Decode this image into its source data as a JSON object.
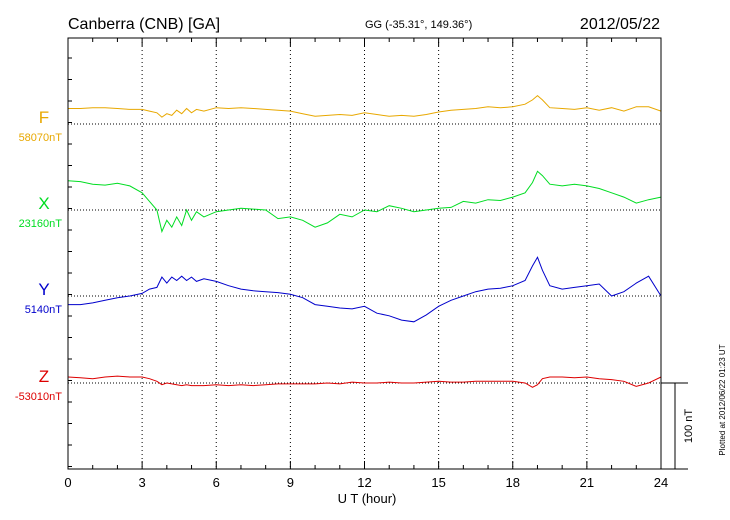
{
  "header": {
    "station": "Canberra (CNB)  [GA]",
    "coords": "GG (-35.31°, 149.36°)",
    "date": "2012/05/22"
  },
  "plotted_note": "Plotted at 2012/06/22 01:23 UT",
  "colors": {
    "F": "#e8a800",
    "X": "#00dd22",
    "Y": "#0000cc",
    "Z": "#dd0000",
    "axis": "#000000"
  },
  "chart_data": {
    "type": "line",
    "title": "",
    "xlabel": "U T (hour)",
    "xlim": [
      0,
      24
    ],
    "xticks": [
      0,
      3,
      6,
      9,
      12,
      15,
      18,
      21,
      24
    ],
    "grid": true,
    "scale_bar": {
      "label": "100 nT",
      "value_nT": 100
    },
    "series": [
      {
        "name": "F",
        "baseline_label": "58070nT",
        "baseline_nT": 58070,
        "x": [
          0,
          0.5,
          1,
          1.5,
          2,
          2.5,
          3,
          3.3,
          3.6,
          3.8,
          4,
          4.2,
          4.4,
          4.6,
          4.8,
          5,
          5.2,
          5.5,
          6,
          6.5,
          7,
          7.5,
          8,
          8.5,
          9,
          9.5,
          10,
          10.5,
          11,
          11.5,
          12,
          12.5,
          13,
          13.5,
          14,
          14.5,
          15,
          15.5,
          16,
          16.5,
          17,
          17.5,
          18,
          18.5,
          18.8,
          19,
          19.2,
          19.5,
          20,
          20.5,
          21,
          21.5,
          22,
          22.5,
          23,
          23.5,
          24
        ],
        "y": [
          58088,
          58088,
          58089,
          58089,
          58088,
          58087,
          58087,
          58085,
          58083,
          58078,
          58082,
          58080,
          58086,
          58082,
          58088,
          58083,
          58087,
          58085,
          58089,
          58088,
          58089,
          58088,
          58087,
          58086,
          58085,
          58082,
          58079,
          58080,
          58081,
          58080,
          58083,
          58081,
          58079,
          58080,
          58079,
          58081,
          58084,
          58086,
          58087,
          58088,
          58090,
          58089,
          58090,
          58093,
          58098,
          58103,
          58098,
          58089,
          58088,
          58087,
          58089,
          58086,
          58089,
          58085,
          58090,
          58090,
          58085
        ]
      },
      {
        "name": "X",
        "baseline_label": "23160nT",
        "baseline_nT": 23160,
        "x": [
          0,
          0.5,
          1,
          1.5,
          2,
          2.5,
          3,
          3.3,
          3.6,
          3.8,
          4,
          4.2,
          4.4,
          4.6,
          4.8,
          5,
          5.2,
          5.5,
          6,
          6.5,
          7,
          7.5,
          8,
          8.5,
          9,
          9.5,
          10,
          10.5,
          11,
          11.5,
          12,
          12.5,
          13,
          13.5,
          14,
          14.5,
          15,
          15.5,
          16,
          16.5,
          17,
          17.5,
          18,
          18.5,
          18.8,
          19,
          19.2,
          19.5,
          20,
          20.5,
          21,
          21.5,
          22,
          22.5,
          23,
          23.5,
          24
        ],
        "y": [
          23194,
          23193,
          23190,
          23189,
          23191,
          23188,
          23180,
          23170,
          23160,
          23135,
          23148,
          23140,
          23152,
          23142,
          23160,
          23148,
          23158,
          23152,
          23158,
          23160,
          23162,
          23161,
          23160,
          23150,
          23152,
          23148,
          23140,
          23145,
          23155,
          23152,
          23160,
          23158,
          23165,
          23162,
          23158,
          23160,
          23162,
          23163,
          23170,
          23168,
          23172,
          23171,
          23175,
          23180,
          23192,
          23205,
          23200,
          23190,
          23188,
          23190,
          23188,
          23185,
          23180,
          23175,
          23168,
          23172,
          23175
        ]
      },
      {
        "name": "Y",
        "baseline_label": "5140nT",
        "baseline_nT": 5140,
        "x": [
          0,
          0.5,
          1,
          1.5,
          2,
          2.5,
          3,
          3.3,
          3.6,
          3.8,
          4,
          4.2,
          4.4,
          4.6,
          4.8,
          5,
          5.2,
          5.5,
          6,
          6.5,
          7,
          7.5,
          8,
          8.5,
          9,
          9.5,
          10,
          10.5,
          11,
          11.5,
          12,
          12.5,
          13,
          13.5,
          14,
          14.5,
          15,
          15.5,
          16,
          16.5,
          17,
          17.5,
          18,
          18.5,
          18.8,
          19,
          19.2,
          19.5,
          20,
          20.5,
          21,
          21.5,
          22,
          22.5,
          23,
          23.5,
          24
        ],
        "y": [
          5130,
          5130,
          5132,
          5135,
          5138,
          5140,
          5143,
          5148,
          5150,
          5162,
          5155,
          5162,
          5158,
          5163,
          5158,
          5162,
          5157,
          5160,
          5157,
          5152,
          5148,
          5146,
          5145,
          5144,
          5142,
          5138,
          5130,
          5128,
          5126,
          5125,
          5128,
          5120,
          5117,
          5112,
          5110,
          5118,
          5128,
          5135,
          5140,
          5145,
          5148,
          5149,
          5152,
          5158,
          5175,
          5185,
          5170,
          5152,
          5148,
          5150,
          5152,
          5154,
          5140,
          5145,
          5155,
          5163,
          5140
        ]
      },
      {
        "name": "Z",
        "baseline_label": "-53010nT",
        "baseline_nT": -53010,
        "x": [
          0,
          0.5,
          1,
          1.5,
          2,
          2.5,
          3,
          3.3,
          3.6,
          3.8,
          4,
          4.2,
          4.4,
          4.6,
          4.8,
          5,
          5.2,
          5.5,
          6,
          6.5,
          7,
          7.5,
          8,
          8.5,
          9,
          9.5,
          10,
          10.5,
          11,
          11.5,
          12,
          12.5,
          13,
          13.5,
          14,
          14.5,
          15,
          15.5,
          16,
          16.5,
          17,
          17.5,
          18,
          18.5,
          18.8,
          19,
          19.2,
          19.5,
          20,
          20.5,
          21,
          21.5,
          22,
          22.5,
          23,
          23.5,
          24
        ],
        "y": [
          -53003,
          -53004,
          -53005,
          -53003,
          -53002,
          -53003,
          -53003,
          -53005,
          -53008,
          -53012,
          -53010,
          -53011,
          -53012,
          -53013,
          -53012,
          -53013,
          -53013,
          -53013,
          -53012,
          -53013,
          -53012,
          -53013,
          -53012,
          -53011,
          -53011,
          -53011,
          -53011,
          -53010,
          -53011,
          -53009,
          -53010,
          -53010,
          -53009,
          -53010,
          -53010,
          -53009,
          -53008,
          -53009,
          -53009,
          -53008,
          -53008,
          -53008,
          -53008,
          -53010,
          -53015,
          -53012,
          -53005,
          -53003,
          -53003,
          -53004,
          -53003,
          -53005,
          -53006,
          -53008,
          -53014,
          -53010,
          -53003
        ]
      }
    ]
  }
}
